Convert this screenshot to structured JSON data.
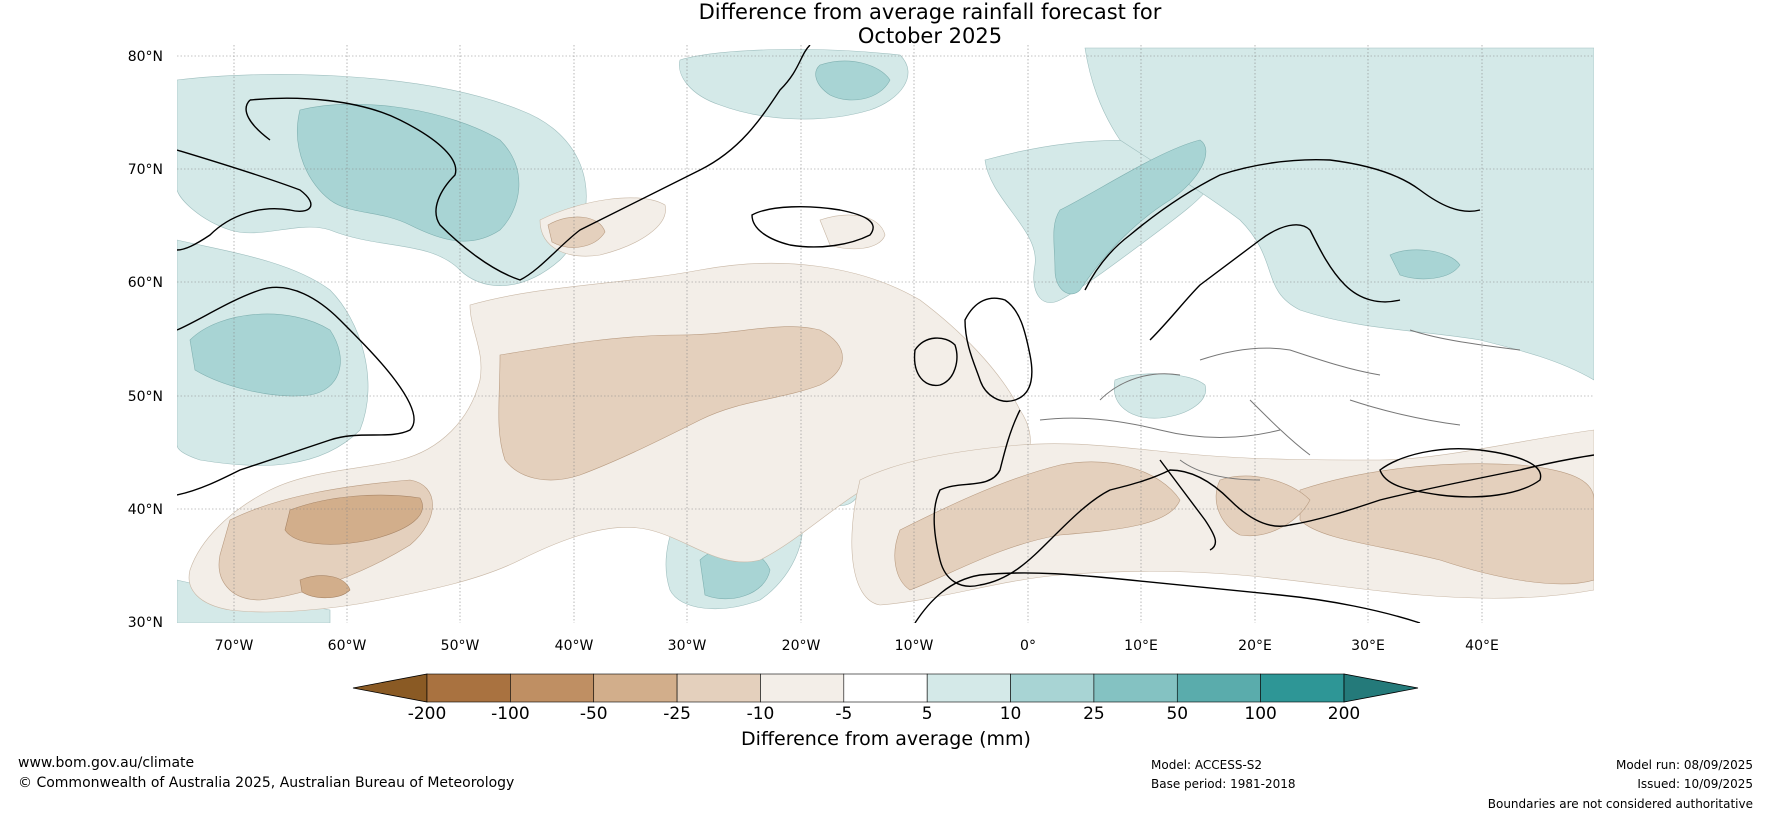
{
  "title": {
    "line1": "Difference from average rainfall forecast for",
    "line2": "October 2025"
  },
  "map": {
    "lat_labels": [
      "80°N",
      "70°N",
      "60°N",
      "50°N",
      "40°N",
      "30°N"
    ],
    "lon_labels": [
      "70°W",
      "60°W",
      "50°W",
      "40°W",
      "30°W",
      "20°W",
      "10°W",
      "0°",
      "10°E",
      "20°E",
      "30°E",
      "40°E"
    ],
    "lat_range": [
      30,
      81
    ],
    "lon_range": [
      -75,
      50
    ]
  },
  "colorbar": {
    "title": "Difference from average (mm)",
    "ticks": [
      "-200",
      "-100",
      "-50",
      "-25",
      "-10",
      "-5",
      "5",
      "10",
      "25",
      "50",
      "100",
      "200"
    ],
    "colors": [
      "#8a5a24",
      "#a97240",
      "#bf8f63",
      "#d2ae8b",
      "#e4d0bd",
      "#f3eee8",
      "#ffffff",
      "#d4e9e8",
      "#a8d4d4",
      "#84c2c2",
      "#5aacac",
      "#2e9696",
      "#247a7a"
    ]
  },
  "footer": {
    "website": "www.bom.gov.au/climate",
    "copyright": "© Commonwealth of Australia 2025, Australian Bureau of Meteorology",
    "model": "Model: ACCESS-S2",
    "base_period": "Base period: 1981-2018",
    "model_run": "Model run: 08/09/2025",
    "issued": "Issued: 10/09/2025",
    "disclaimer": "Boundaries are not considered authoritative"
  }
}
